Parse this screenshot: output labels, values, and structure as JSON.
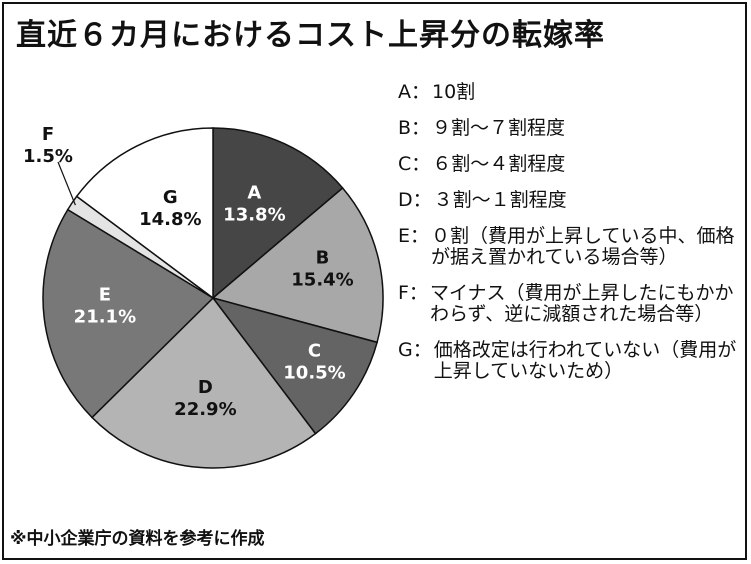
{
  "chart_data": {
    "type": "pie",
    "title": "直近６カ月におけるコスト上昇分の転嫁率",
    "start_angle_deg": 0,
    "direction": "clockwise",
    "slices": [
      {
        "key": "A",
        "value": 13.8,
        "pct_label": "13.8%",
        "color": "#464646",
        "text_color": "#ffffff",
        "legend": "10割"
      },
      {
        "key": "B",
        "value": 15.4,
        "pct_label": "15.4%",
        "color": "#a8a8a8",
        "text_color": "#111111",
        "legend": "９割〜７割程度"
      },
      {
        "key": "C",
        "value": 10.5,
        "pct_label": "10.5%",
        "color": "#646464",
        "text_color": "#ffffff",
        "legend": "６割〜４割程度"
      },
      {
        "key": "D",
        "value": 22.9,
        "pct_label": "22.9%",
        "color": "#b4b4b4",
        "text_color": "#111111",
        "legend": "３割〜１割程度"
      },
      {
        "key": "E",
        "value": 21.1,
        "pct_label": "21.1%",
        "color": "#787878",
        "text_color": "#ffffff",
        "legend": "０割（費用が上昇している中、価格が据え置かれている場合等）"
      },
      {
        "key": "F",
        "value": 1.5,
        "pct_label": "1.5%",
        "color": "#e4e4e4",
        "text_color": "#111111",
        "legend": "マイナス（費用が上昇したにもかかわらず、逆に減額された場合等）"
      },
      {
        "key": "G",
        "value": 14.8,
        "pct_label": "14.8%",
        "color": "#ffffff",
        "text_color": "#111111",
        "legend": "価格改定は行われていない（費用が上昇していないため）"
      }
    ]
  },
  "legend_separator": "：",
  "source_note": "※中小企業庁の資料を参考に作成"
}
